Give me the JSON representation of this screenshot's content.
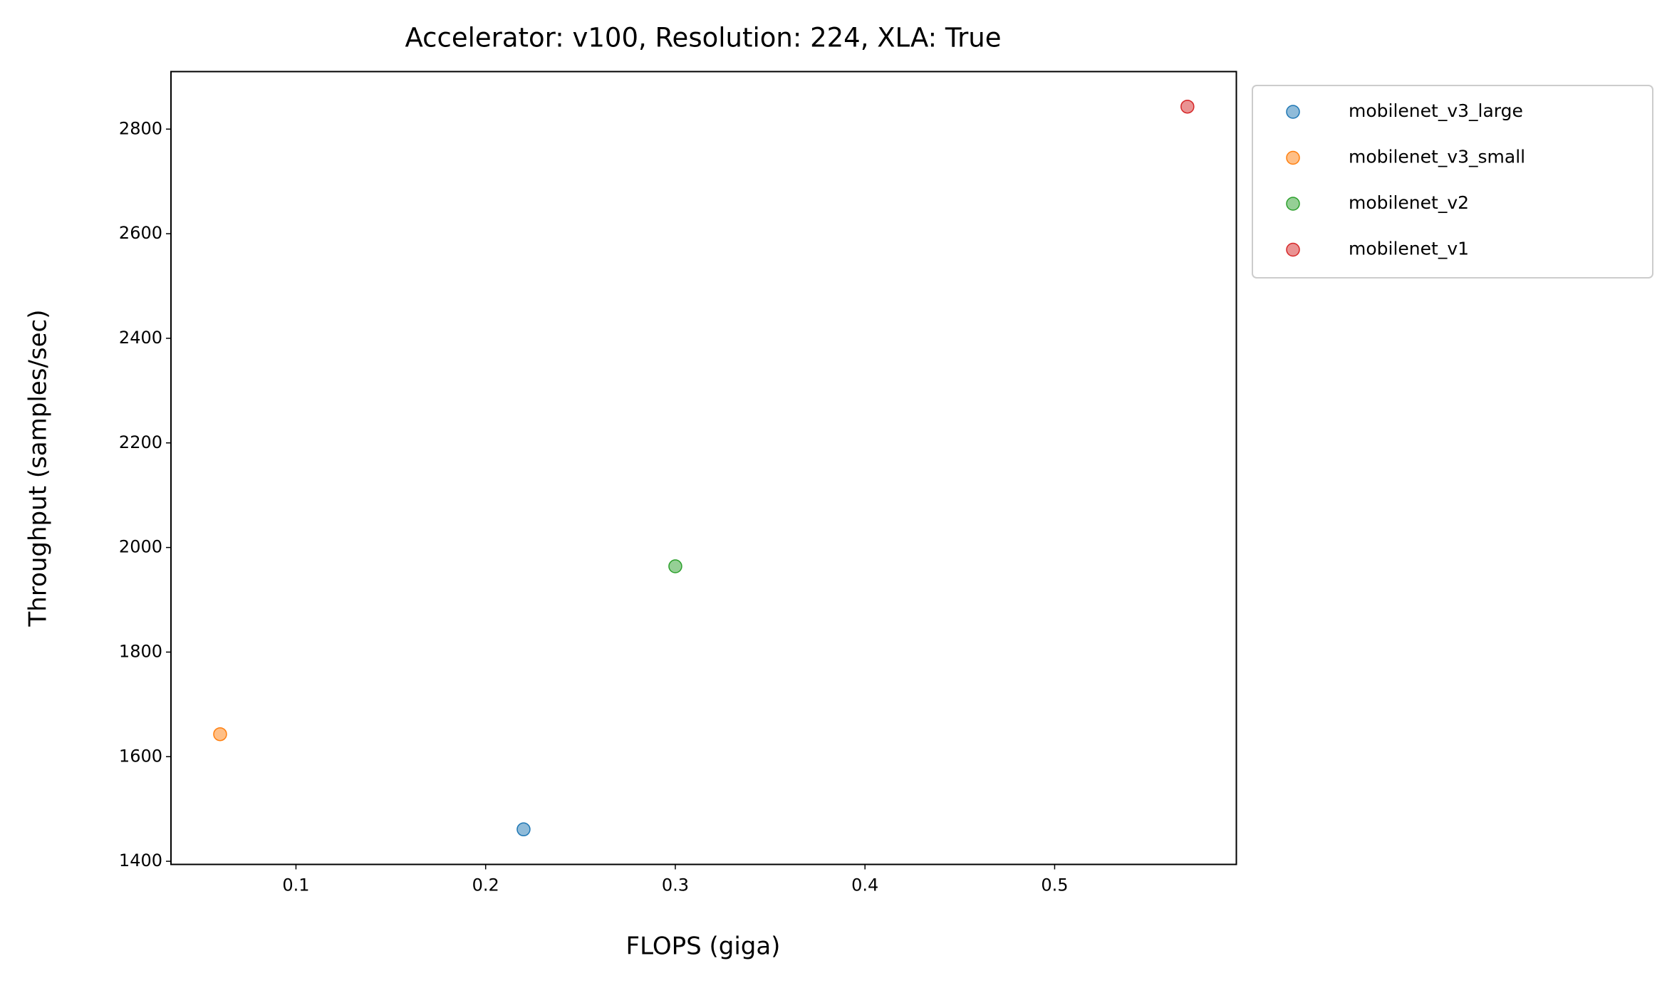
{
  "chart_data": {
    "type": "scatter",
    "title": "Accelerator: v100, Resolution: 224, XLA: True",
    "x_label": "FLOPS (giga)",
    "y_label": "Throughput (samples/sec)",
    "series": [
      {
        "name": "mobilenet_v3_large",
        "color": "#1f77b4",
        "x": [
          0.22
        ],
        "values": [
          1461
        ]
      },
      {
        "name": "mobilenet_v3_small",
        "color": "#ff7f0e",
        "x": [
          0.06
        ],
        "values": [
          1643
        ]
      },
      {
        "name": "mobilenet_v2",
        "color": "#2ca02c",
        "x": [
          0.3
        ],
        "values": [
          1964
        ]
      },
      {
        "name": "mobilenet_v1",
        "color": "#d62728",
        "x": [
          0.57
        ],
        "values": [
          2843
        ]
      }
    ],
    "xlim": [
      0.0341,
      0.5958
    ],
    "xticks": [
      0.1,
      0.2,
      0.3,
      0.4,
      0.5
    ],
    "ylim": [
      1394,
      2910
    ],
    "yticks": [
      1400,
      1600,
      1800,
      2000,
      2200,
      2400,
      2600,
      2800
    ],
    "grid": false,
    "legend": "outside upper right"
  }
}
